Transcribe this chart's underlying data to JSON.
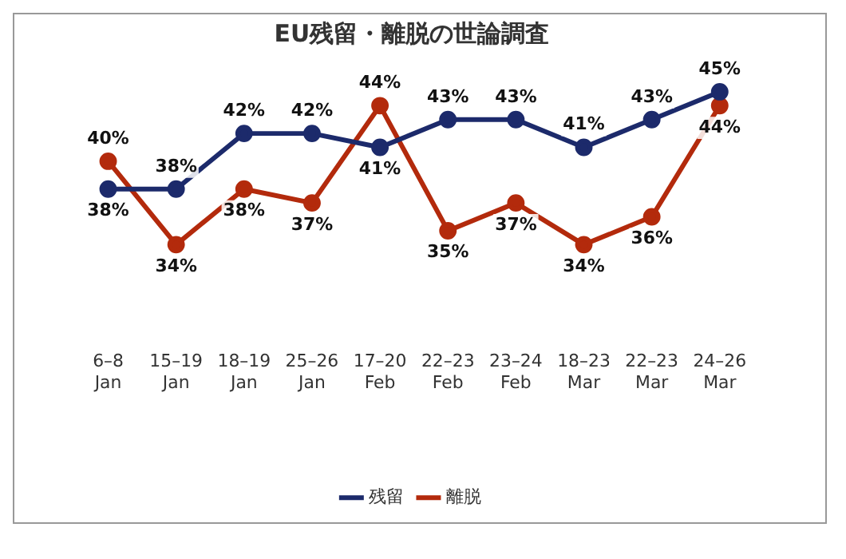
{
  "chart_data": {
    "type": "line",
    "title": "EU残留・離脱の世論調査",
    "categories": [
      "6–8 Jan",
      "15–19 Jan",
      "18–19 Jan",
      "25–26 Jan",
      "17–20 Feb",
      "22–23 Feb",
      "23–24 Feb",
      "18–23 Mar",
      "22–23 Mar",
      "24–26 Mar"
    ],
    "series": [
      {
        "name": "残留",
        "color": "#1c2a6b",
        "values": [
          38,
          38,
          42,
          42,
          41,
          43,
          43,
          41,
          43,
          45
        ],
        "value_labels": [
          "38%",
          "38%",
          "42%",
          "42%",
          "41%",
          "43%",
          "43%",
          "41%",
          "43%",
          "45%"
        ]
      },
      {
        "name": "離脱",
        "color": "#b32a0c",
        "values": [
          40,
          34,
          38,
          37,
          44,
          35,
          37,
          34,
          36,
          44
        ],
        "value_labels": [
          "40%",
          "34%",
          "38%",
          "37%",
          "44%",
          "35%",
          "37%",
          "34%",
          "36%",
          "44%"
        ]
      }
    ],
    "legend": "bottom",
    "grid": false,
    "marker": "circle",
    "line_style": "solid",
    "tick_labels": "x"
  }
}
